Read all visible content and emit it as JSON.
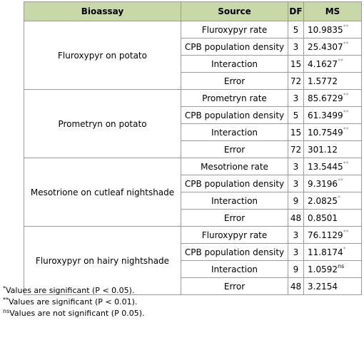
{
  "table": {
    "headers": [
      "Bioassay",
      "Source",
      "DF",
      "MS"
    ],
    "groups": [
      {
        "bioassay": "Fluroxypyr on potato",
        "rows": [
          {
            "source": "Fluroxypyr rate",
            "df": "5",
            "ms": "10.9835",
            "sig": "**"
          },
          {
            "source": "CPB population density",
            "df": "3",
            "ms": "25.4307",
            "sig": "**"
          },
          {
            "source": "Interaction",
            "df": "15",
            "ms": "4.1627",
            "sig": "**"
          },
          {
            "source": "Error",
            "df": "72",
            "ms": "1.5772",
            "sig": ""
          }
        ]
      },
      {
        "bioassay": "Prometryn on potato",
        "rows": [
          {
            "source": "Prometryn rate",
            "df": "3",
            "ms": "85.6729",
            "sig": "**"
          },
          {
            "source": "CPB population density",
            "df": "5",
            "ms": "61.3499",
            "sig": "**"
          },
          {
            "source": "Interaction",
            "df": "15",
            "ms": "10.7549",
            "sig": "**"
          },
          {
            "source": "Error",
            "df": "72",
            "ms": "301.12",
            "sig": ""
          }
        ]
      },
      {
        "bioassay": "Mesotrione on cutleaf nightshade",
        "rows": [
          {
            "source": "Mesotrione rate",
            "df": "3",
            "ms": "13.5445",
            "sig": "**"
          },
          {
            "source": "CPB population density",
            "df": "3",
            "ms": "9.3196",
            "sig": "**"
          },
          {
            "source": "Interaction",
            "df": "9",
            "ms": "2.0825",
            "sig": "*"
          },
          {
            "source": "Error",
            "df": "48",
            "ms": "0.8501",
            "sig": ""
          }
        ]
      },
      {
        "bioassay": "Fluroxypyr on hairy nightshade",
        "rows": [
          {
            "source": "Fluroxypyr rate",
            "df": "3",
            "ms": "76.1129",
            "sig": "**"
          },
          {
            "source": "CPB population density",
            "df": "3",
            "ms": "11.8174",
            "sig": "*"
          },
          {
            "source": "Interaction",
            "df": "9",
            "ms": "1.0592",
            "sig": "ns"
          },
          {
            "source": "Error",
            "df": "48",
            "ms": "3.2154",
            "sig": ""
          }
        ]
      }
    ]
  },
  "notes": [
    {
      "mark": "*",
      "text": "Values are significant (P < 0.05)."
    },
    {
      "mark": "**",
      "text": "Values are significant (P < 0.01)."
    },
    {
      "mark": "ns",
      "text": "Values are not significant (P 0.05)."
    }
  ],
  "colors": {
    "header_bg": "#c8d8a8",
    "border": "#9a9a9a",
    "sig_mark": "#909090"
  }
}
